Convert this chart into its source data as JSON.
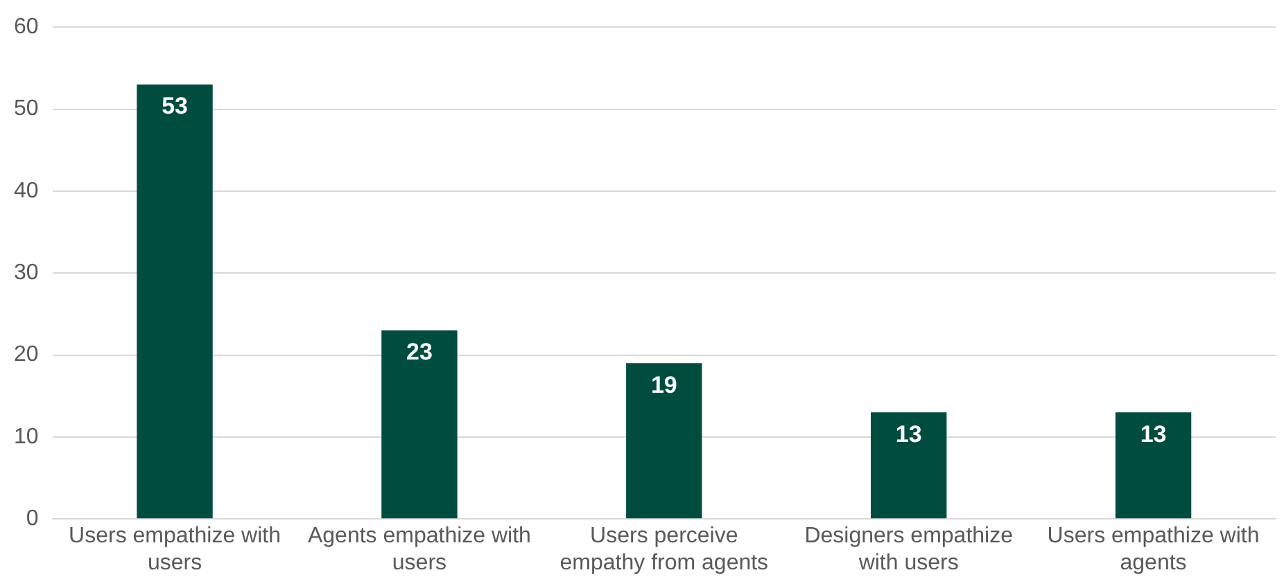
{
  "chart_data": {
    "type": "bar",
    "categories": [
      "Users empathize with users",
      "Agents empathize with users",
      "Users perceive empathy from agents",
      "Designers empathize with users",
      "Users empathize with agents"
    ],
    "values": [
      53,
      23,
      19,
      13,
      13
    ],
    "color": "#004d40",
    "ylim": [
      0,
      60
    ],
    "yticks": [
      0,
      10,
      20,
      30,
      40,
      50,
      60
    ],
    "grid": "y",
    "data_labels": true,
    "legend": false
  }
}
